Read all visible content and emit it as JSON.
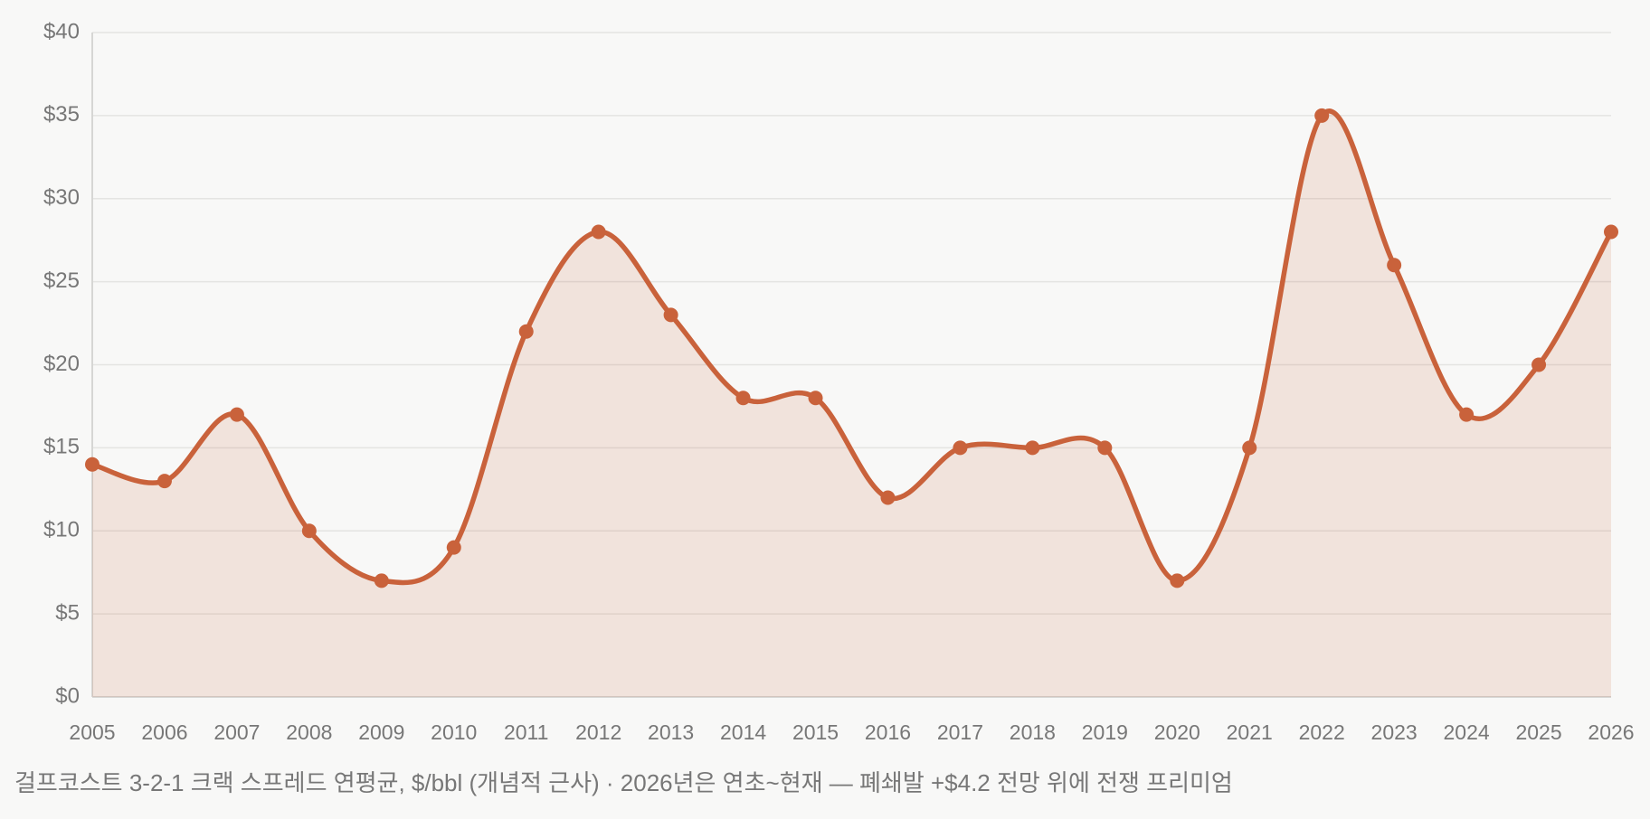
{
  "chart_data": {
    "type": "line",
    "caption": "걸프코스트 3-2-1 크랙 스프레드 연평균, $/bbl (개념적 근사) · 2026년은 연초~현재 — 폐쇄발 +$4.2 전망 위에 전쟁 프리미엄",
    "categories": [
      "2005",
      "2006",
      "2007",
      "2008",
      "2009",
      "2010",
      "2011",
      "2012",
      "2013",
      "2014",
      "2015",
      "2016",
      "2017",
      "2018",
      "2019",
      "2020",
      "2021",
      "2022",
      "2023",
      "2024",
      "2025",
      "2026"
    ],
    "values": [
      14,
      13,
      17,
      10,
      7,
      9,
      22,
      28,
      23,
      18,
      18,
      12,
      15,
      15,
      15,
      7,
      15,
      35,
      26,
      17,
      20,
      28
    ],
    "color": "#c9623b",
    "area": true,
    "ylim": [
      0,
      40
    ],
    "yticks": [
      {
        "value": 0,
        "label": "$0"
      },
      {
        "value": 5,
        "label": "$5"
      },
      {
        "value": 10,
        "label": "$10"
      },
      {
        "value": 15,
        "label": "$15"
      },
      {
        "value": 20,
        "label": "$20"
      },
      {
        "value": 25,
        "label": "$25"
      },
      {
        "value": 30,
        "label": "$30"
      },
      {
        "value": 35,
        "label": "$35"
      },
      {
        "value": 40,
        "label": "$40"
      }
    ],
    "grid": true
  }
}
